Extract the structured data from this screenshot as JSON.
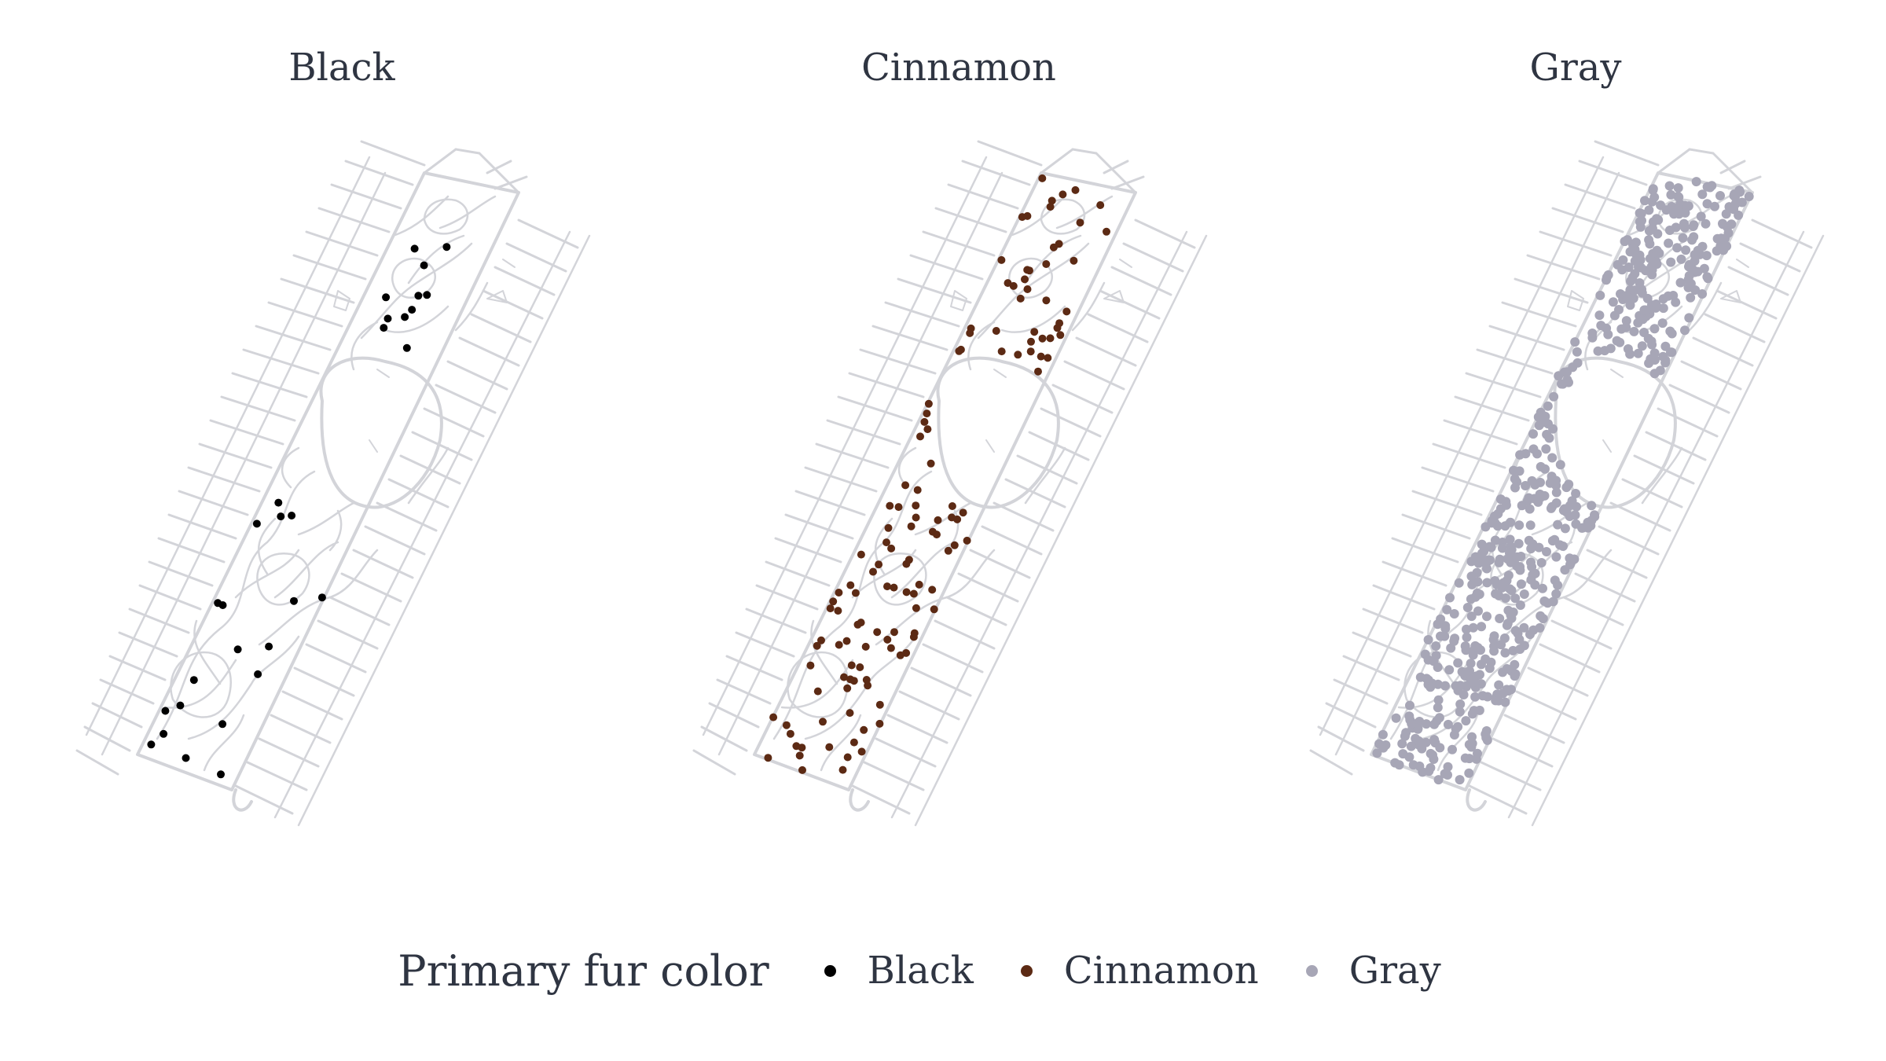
{
  "legend": {
    "title": "Primary fur color",
    "items": [
      {
        "label": "Black",
        "color": "#000000"
      },
      {
        "label": "Cinnamon",
        "color": "#5c2a14"
      },
      {
        "label": "Gray",
        "color": "#a7a6b6"
      }
    ]
  },
  "colors": {
    "street": "#d3d4d9",
    "background": "#ffffff"
  },
  "panels": [
    {
      "title": "Black",
      "color": "#000000",
      "approx_sightings": 30
    },
    {
      "title": "Cinnamon",
      "color": "#5c2a14",
      "approx_sightings": 130
    },
    {
      "title": "Gray",
      "color": "#a7a6b6",
      "approx_sightings": 600
    }
  ]
}
